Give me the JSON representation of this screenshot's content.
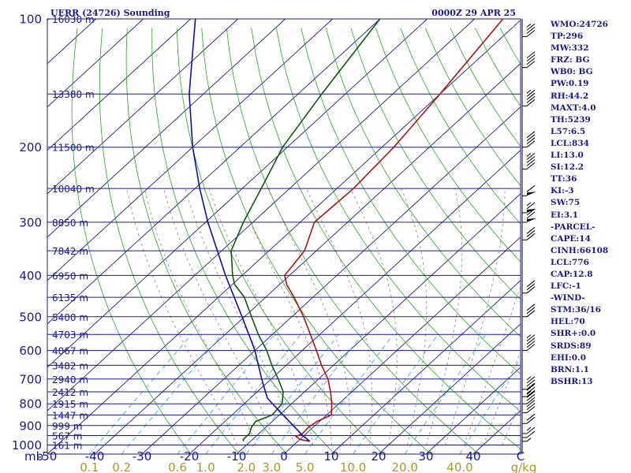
{
  "header": {
    "station": "UERR (24726) Sounding",
    "time": "0000Z 29 APR 25"
  },
  "colors": {
    "isobar": "#1a1a8c",
    "isotherm": "#1a1a8c",
    "dry_adiabat": "#28a828",
    "moist_adiabat": "#9a8f80",
    "mixing_ratio": "#3ab0d8",
    "temperature": "#b01414",
    "dewpoint": "#0e5a0e",
    "parcel": "#1010a0",
    "wind": "#000000",
    "text": "#1a1a8c",
    "mixing_label": "#a89a2a"
  },
  "indices": [
    {
      "key": "WMO",
      "value": "24726"
    },
    {
      "key": "TP",
      "value": "296"
    },
    {
      "key": "MW",
      "value": "332"
    },
    {
      "key": "FRZ",
      "value": " BG"
    },
    {
      "key": "WB0",
      "value": " BG"
    },
    {
      "key": "PW",
      "value": "0.19"
    },
    {
      "key": "RH",
      "value": "44.2"
    },
    {
      "key": "MAXT",
      "value": "4.0"
    },
    {
      "key": "TH",
      "value": "5239"
    },
    {
      "key": "L57",
      "value": "6.5"
    },
    {
      "key": "LCL",
      "value": "834"
    },
    {
      "key": "LI",
      "value": "13.0"
    },
    {
      "key": "SI",
      "value": "12.2"
    },
    {
      "key": "TT",
      "value": "36"
    },
    {
      "key": "KI",
      "value": "-3"
    },
    {
      "key": "SW",
      "value": "75"
    },
    {
      "key": "EI",
      "value": "3.1"
    },
    {
      "key": "",
      "value": "-PARCEL-"
    },
    {
      "key": "CAPE",
      "value": "14"
    },
    {
      "key": "CINH",
      "value": "66108"
    },
    {
      "key": "LCL",
      "value": "776"
    },
    {
      "key": "CAP",
      "value": "12.8"
    },
    {
      "key": "LFC",
      "value": "-1"
    },
    {
      "key": "",
      "value": "-WIND-"
    },
    {
      "key": "STM",
      "value": "36/16"
    },
    {
      "key": "HEL",
      "value": "70"
    },
    {
      "key": "SHR+",
      "value": "0.0"
    },
    {
      "key": "SRDS",
      "value": "89"
    },
    {
      "key": "EHI",
      "value": "0.0"
    },
    {
      "key": "BRN",
      "value": "1.1"
    },
    {
      "key": "BSHR",
      "value": "13"
    }
  ],
  "chart_data": {
    "type": "line",
    "title": "UERR (24726) Sounding",
    "subtitle": "0000Z 29 APR 25",
    "xlabel": "",
    "ylabel": "mb",
    "pressure_range_mb": [
      1050,
      100
    ],
    "temperature_range_c": [
      -50,
      50
    ],
    "pressure_levels": [
      "100",
      "200",
      "300",
      "400",
      "500",
      "600",
      "700",
      "800",
      "900",
      "1000"
    ],
    "pressure_axis_unit": "mb",
    "temperature_ticks": [
      "-50",
      "-40",
      "-30",
      "-20",
      "-10",
      "0",
      "10",
      "20",
      "30",
      "40"
    ],
    "temperature_right_tick": "C",
    "mixing_ratio_ticks": [
      "0.1",
      "0.2",
      "0.6",
      "1.0",
      "2.0",
      "3.0",
      "5.0",
      "10.0",
      "20.0",
      "40.0"
    ],
    "mixing_ratio_unit": "g/kg",
    "height_labels": [
      {
        "p": 100,
        "h": "16030 m"
      },
      {
        "p": 150,
        "h": "13380 m"
      },
      {
        "p": 200,
        "h": "11500 m"
      },
      {
        "p": 250,
        "h": "10040 m"
      },
      {
        "p": 300,
        "h": "8850 m"
      },
      {
        "p": 350,
        "h": "7842 m"
      },
      {
        "p": 400,
        "h": "6950 m"
      },
      {
        "p": 450,
        "h": "6135 m"
      },
      {
        "p": 500,
        "h": "5400 m"
      },
      {
        "p": 550,
        "h": "4703 m"
      },
      {
        "p": 600,
        "h": "4067 m"
      },
      {
        "p": 650,
        "h": "3482 m"
      },
      {
        "p": 700,
        "h": "2940 m"
      },
      {
        "p": 750,
        "h": "2412 m"
      },
      {
        "p": 800,
        "h": "1915 m"
      },
      {
        "p": 850,
        "h": "1447 m"
      },
      {
        "p": 900,
        "h": "999 m"
      },
      {
        "p": 950,
        "h": "567 m"
      },
      {
        "p": 1000,
        "h": "161 m"
      }
    ],
    "series": [
      {
        "name": "temperature",
        "p": [
          980,
          970,
          955,
          940,
          910,
          880,
          850,
          800,
          750,
          700,
          650,
          600,
          550,
          500,
          450,
          420,
          400,
          350,
          300,
          250,
          200,
          150,
          100
        ],
        "t": [
          2.5,
          0.0,
          -1.5,
          -0.8,
          -1.0,
          -0.5,
          1.0,
          -1.5,
          -4.5,
          -8.0,
          -12.5,
          -17.0,
          -22.0,
          -27.5,
          -34.0,
          -38.5,
          -41.0,
          -42.5,
          -47.0,
          -46.5,
          -47.5,
          -50.0,
          -54.0
        ]
      },
      {
        "name": "dewpoint",
        "p": [
          980,
          970,
          955,
          940,
          910,
          880,
          850,
          800,
          750,
          700,
          650,
          600,
          550,
          500,
          450,
          420,
          400,
          350,
          300,
          250,
          200,
          150,
          100
        ],
        "t": [
          -11.5,
          -12.0,
          -12.0,
          -12.0,
          -13.0,
          -13.5,
          -11.5,
          -12.0,
          -14.5,
          -18.5,
          -23.0,
          -27.5,
          -33.0,
          -38.5,
          -44.5,
          -49.5,
          -52.0,
          -58.0,
          -62.0,
          -66.0,
          -71.0,
          -75.0,
          -80.0
        ]
      },
      {
        "name": "parcel",
        "p": [
          980,
          950,
          900,
          850,
          800,
          776,
          700,
          600,
          500,
          400,
          300,
          250,
          200,
          150,
          100
        ],
        "t": [
          2.5,
          -0.3,
          -4.6,
          -9.2,
          -14.0,
          -16.4,
          -22.0,
          -30.0,
          -40.5,
          -53.5,
          -69.5,
          -79.0,
          -90.0,
          -103.0,
          -119.0
        ]
      }
    ],
    "wind_barbs": [
      {
        "p": 980,
        "dir": 230,
        "spd": 5
      },
      {
        "p": 960,
        "dir": 240,
        "spd": 10
      },
      {
        "p": 940,
        "dir": 250,
        "spd": 15
      },
      {
        "p": 890,
        "dir": 255,
        "spd": 20
      },
      {
        "p": 840,
        "dir": 260,
        "spd": 30
      },
      {
        "p": 800,
        "dir": 265,
        "spd": 35
      },
      {
        "p": 770,
        "dir": 270,
        "spd": 30
      },
      {
        "p": 740,
        "dir": 270,
        "spd": 35
      },
      {
        "p": 600,
        "dir": 290,
        "spd": 45
      },
      {
        "p": 500,
        "dir": 285,
        "spd": 30
      },
      {
        "p": 440,
        "dir": 285,
        "spd": 30
      },
      {
        "p": 330,
        "dir": 285,
        "spd": 30
      },
      {
        "p": 300,
        "dir": 280,
        "spd": 70
      },
      {
        "p": 285,
        "dir": 280,
        "spd": 65
      },
      {
        "p": 260,
        "dir": 280,
        "spd": 60
      },
      {
        "p": 225,
        "dir": 285,
        "spd": 45
      },
      {
        "p": 200,
        "dir": 285,
        "spd": 40
      },
      {
        "p": 160,
        "dir": 285,
        "spd": 45
      },
      {
        "p": 130,
        "dir": 285,
        "spd": 40
      },
      {
        "p": 110,
        "dir": 280,
        "spd": 35
      }
    ],
    "grid": true,
    "legend": "none"
  }
}
